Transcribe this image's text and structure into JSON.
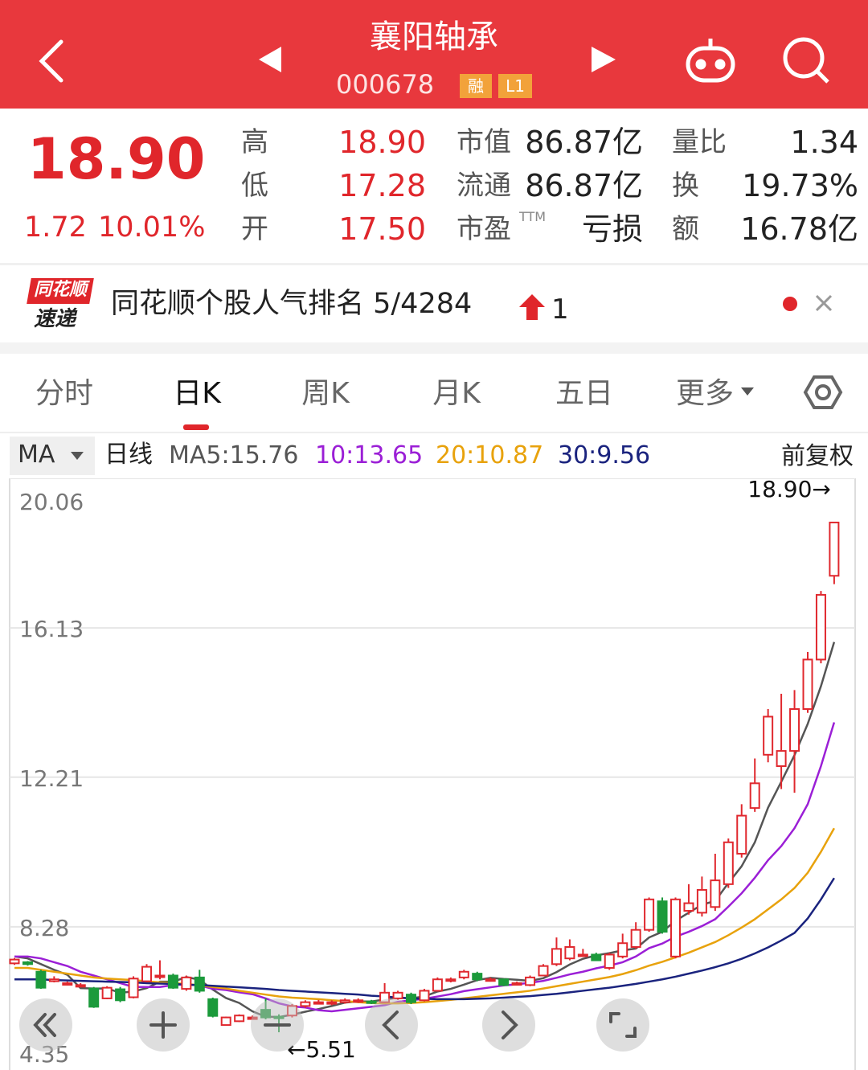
{
  "header": {
    "title": "襄阳轴承",
    "code": "000678",
    "badges": [
      "融",
      "L1"
    ]
  },
  "quote": {
    "price": "18.90",
    "change": "1.72",
    "pct": "10.01%",
    "ttm": "TTM",
    "stats": [
      [
        "高",
        "18.90"
      ],
      [
        "低",
        "17.28"
      ],
      [
        "开",
        "17.50"
      ],
      [
        "市值",
        "86.87亿"
      ],
      [
        "流通",
        "86.87亿"
      ],
      [
        "市盈",
        "亏损"
      ],
      [
        "量比",
        "1.34"
      ],
      [
        "换",
        "19.73%"
      ],
      [
        "额",
        "16.78亿"
      ]
    ]
  },
  "banner": {
    "logo_top": "同花顺",
    "logo_bottom": "速递",
    "text": "同花顺个股人气排名 5/4284",
    "rank_change": "1"
  },
  "tabs": [
    "分时",
    "日K",
    "周K",
    "月K",
    "五日",
    "更多"
  ],
  "active_tab": 1,
  "chart_bar": {
    "indicator": "MA",
    "period": "日线",
    "adjust": "前复权"
  },
  "chart_data": {
    "type": "candlestick",
    "ylim": [
      4.35,
      20.06
    ],
    "yticks": [
      {
        "value": 20.06,
        "label": "20.06"
      },
      {
        "value": 16.13,
        "label": "16.13"
      },
      {
        "value": 12.21,
        "label": "12.21"
      },
      {
        "value": 8.28,
        "label": "8.28"
      },
      {
        "value": 4.35,
        "label": "4.35"
      }
    ],
    "grid": true,
    "up_color": "#e0282e",
    "down_color": "#1b9a3b",
    "candles": [
      [
        7.32,
        7.46,
        7.28,
        7.42
      ],
      [
        7.35,
        7.38,
        7.26,
        7.3
      ],
      [
        7.1,
        7.15,
        6.65,
        6.68
      ],
      [
        6.85,
        6.98,
        6.82,
        6.9
      ],
      [
        6.78,
        6.84,
        6.74,
        6.8
      ],
      [
        6.72,
        6.8,
        6.7,
        6.75
      ],
      [
        6.66,
        6.7,
        6.15,
        6.18
      ],
      [
        6.4,
        6.72,
        6.38,
        6.68
      ],
      [
        6.64,
        6.7,
        6.3,
        6.35
      ],
      [
        6.43,
        6.98,
        6.4,
        6.92
      ],
      [
        6.85,
        7.3,
        6.82,
        7.23
      ],
      [
        6.98,
        7.4,
        6.9,
        7.0
      ],
      [
        7.0,
        7.05,
        6.65,
        6.68
      ],
      [
        6.65,
        7.0,
        6.6,
        6.95
      ],
      [
        6.95,
        7.15,
        6.55,
        6.6
      ],
      [
        6.38,
        6.42,
        5.9,
        5.94
      ],
      [
        5.7,
        5.92,
        5.68,
        5.9
      ],
      [
        5.8,
        5.98,
        5.78,
        5.95
      ],
      [
        5.9,
        5.95,
        5.85,
        5.9
      ],
      [
        6.1,
        6.4,
        5.85,
        5.9
      ],
      [
        5.92,
        5.98,
        5.51,
        5.9
      ],
      [
        5.95,
        6.25,
        5.9,
        6.2
      ],
      [
        6.2,
        6.35,
        6.15,
        6.3
      ],
      [
        6.28,
        6.36,
        6.24,
        6.3
      ],
      [
        6.28,
        6.35,
        6.22,
        6.3
      ],
      [
        6.3,
        6.4,
        6.26,
        6.35
      ],
      [
        6.33,
        6.4,
        6.28,
        6.35
      ],
      [
        6.32,
        6.36,
        6.25,
        6.3
      ],
      [
        6.3,
        6.8,
        6.28,
        6.55
      ],
      [
        6.4,
        6.6,
        6.36,
        6.55
      ],
      [
        6.5,
        6.55,
        6.25,
        6.3
      ],
      [
        6.35,
        6.65,
        6.32,
        6.6
      ],
      [
        6.6,
        6.95,
        6.58,
        6.9
      ],
      [
        6.88,
        6.95,
        6.82,
        6.9
      ],
      [
        6.95,
        7.15,
        6.9,
        7.1
      ],
      [
        7.05,
        7.1,
        6.85,
        6.9
      ],
      [
        6.88,
        6.95,
        6.84,
        6.9
      ],
      [
        6.9,
        6.92,
        6.72,
        6.75
      ],
      [
        6.78,
        6.84,
        6.74,
        6.8
      ],
      [
        6.75,
        7.0,
        6.72,
        6.95
      ],
      [
        7.0,
        7.3,
        6.98,
        7.25
      ],
      [
        7.3,
        8.0,
        7.25,
        7.7
      ],
      [
        7.45,
        7.95,
        7.4,
        7.75
      ],
      [
        7.53,
        7.7,
        7.5,
        7.55
      ],
      [
        7.55,
        7.6,
        7.38,
        7.4
      ],
      [
        7.2,
        7.6,
        7.15,
        7.55
      ],
      [
        7.5,
        8.1,
        7.45,
        7.85
      ],
      [
        7.75,
        8.4,
        7.7,
        8.2
      ],
      [
        8.2,
        9.05,
        8.15,
        9.0
      ],
      [
        8.95,
        9.05,
        8.1,
        8.15
      ],
      [
        7.5,
        9.05,
        7.45,
        9.0
      ],
      [
        8.7,
        9.4,
        8.6,
        8.9
      ],
      [
        8.65,
        9.6,
        8.55,
        9.25
      ],
      [
        8.8,
        10.2,
        8.7,
        9.5
      ],
      [
        9.4,
        10.6,
        9.3,
        10.5
      ],
      [
        10.2,
        11.5,
        10.1,
        11.2
      ],
      [
        11.4,
        12.7,
        11.3,
        12.05
      ],
      [
        12.8,
        14.0,
        12.6,
        13.8
      ],
      [
        12.5,
        14.4,
        11.9,
        12.9
      ],
      [
        12.9,
        14.5,
        11.8,
        14.0
      ],
      [
        14.0,
        15.5,
        13.9,
        15.3
      ],
      [
        15.3,
        17.1,
        15.2,
        17.0
      ],
      [
        17.5,
        18.9,
        17.28,
        18.9
      ]
    ],
    "series": [
      {
        "name": "MA5:15.76",
        "color": "#555555",
        "values": [
          7.5,
          7.45,
          7.3,
          7.15,
          7.02,
          6.67,
          6.66,
          6.66,
          6.55,
          6.58,
          6.67,
          6.84,
          6.84,
          6.96,
          6.89,
          6.63,
          6.41,
          6.28,
          6.06,
          5.92,
          5.91,
          5.97,
          6.05,
          6.12,
          6.2,
          6.29,
          6.32,
          6.32,
          6.37,
          6.42,
          6.4,
          6.45,
          6.58,
          6.65,
          6.76,
          6.88,
          6.94,
          6.91,
          6.89,
          6.86,
          6.93,
          7.09,
          7.29,
          7.44,
          7.53,
          7.59,
          7.66,
          7.71,
          8.0,
          8.15,
          8.44,
          8.65,
          8.86,
          8.96,
          9.43,
          9.87,
          10.5,
          11.41,
          12.09,
          12.79,
          13.61,
          14.6,
          15.76
        ]
      },
      {
        "name": "10:13.65",
        "color": "#9b1fd6",
        "values": [
          7.5,
          7.5,
          7.45,
          7.35,
          7.25,
          7.1,
          7.0,
          6.9,
          6.8,
          6.7,
          6.7,
          6.7,
          6.75,
          6.77,
          6.74,
          6.65,
          6.62,
          6.56,
          6.51,
          6.4,
          6.27,
          6.19,
          6.16,
          6.09,
          6.06,
          6.1,
          6.14,
          6.18,
          6.22,
          6.31,
          6.35,
          6.39,
          6.45,
          6.51,
          6.59,
          6.64,
          6.69,
          6.74,
          6.77,
          6.81,
          6.86,
          6.94,
          7.03,
          7.1,
          7.19,
          7.26,
          7.35,
          7.5,
          7.72,
          7.84,
          8.02,
          8.15,
          8.3,
          8.48,
          8.81,
          9.16,
          9.57,
          10.03,
          10.4,
          10.87,
          11.5,
          12.5,
          13.65
        ]
      },
      {
        "name": "20:10.87",
        "color": "#e8a20c",
        "values": [
          7.2,
          7.2,
          7.15,
          7.1,
          7.05,
          7.0,
          6.95,
          6.92,
          6.9,
          6.88,
          6.85,
          6.82,
          6.8,
          6.78,
          6.74,
          6.7,
          6.66,
          6.6,
          6.55,
          6.5,
          6.45,
          6.42,
          6.4,
          6.38,
          6.35,
          6.33,
          6.3,
          6.28,
          6.27,
          6.27,
          6.28,
          6.3,
          6.33,
          6.36,
          6.4,
          6.44,
          6.48,
          6.52,
          6.56,
          6.6,
          6.66,
          6.72,
          6.78,
          6.84,
          6.9,
          6.96,
          7.04,
          7.14,
          7.26,
          7.36,
          7.48,
          7.6,
          7.74,
          7.88,
          8.06,
          8.26,
          8.48,
          8.74,
          9.0,
          9.3,
          9.7,
          10.25,
          10.87
        ]
      },
      {
        "name": "30:9.56",
        "color": "#1a237e",
        "values": [
          6.9,
          6.9,
          6.9,
          6.88,
          6.87,
          6.86,
          6.85,
          6.84,
          6.83,
          6.82,
          6.8,
          6.79,
          6.78,
          6.76,
          6.75,
          6.73,
          6.71,
          6.69,
          6.67,
          6.65,
          6.62,
          6.6,
          6.58,
          6.56,
          6.54,
          6.52,
          6.5,
          6.47,
          6.45,
          6.42,
          6.4,
          6.39,
          6.38,
          6.38,
          6.38,
          6.39,
          6.4,
          6.42,
          6.44,
          6.46,
          6.49,
          6.52,
          6.56,
          6.6,
          6.64,
          6.68,
          6.73,
          6.78,
          6.84,
          6.9,
          6.97,
          7.05,
          7.13,
          7.22,
          7.32,
          7.44,
          7.58,
          7.74,
          7.92,
          8.12,
          8.5,
          9.0,
          9.56
        ]
      }
    ],
    "annotations": [
      "18.90→",
      "←5.51"
    ]
  }
}
